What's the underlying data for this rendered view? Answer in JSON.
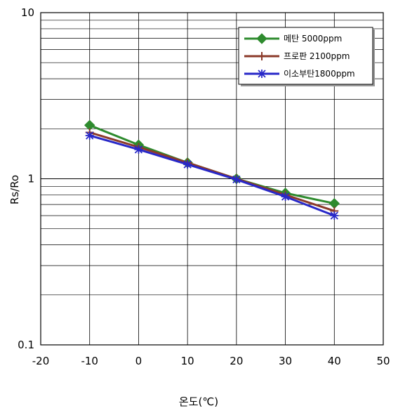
{
  "chart_data": {
    "type": "line",
    "xlabel": "온도(℃)",
    "ylabel": "Rs/Ro",
    "xlim": [
      -20,
      50
    ],
    "ylim": [
      0.1,
      10
    ],
    "yscale": "log",
    "grid": true,
    "legend_position": "top-right",
    "x_ticks": [
      "-20",
      "-10",
      "0",
      "10",
      "20",
      "30",
      "40",
      "50"
    ],
    "y_ticks": [
      "0.1",
      "1",
      "10"
    ],
    "series": [
      {
        "name": "메탄 5000ppm",
        "color": "#2e8b2e",
        "marker": "diamond",
        "x": [
          -10,
          0,
          10,
          20,
          30,
          40
        ],
        "y": [
          2.1,
          1.6,
          1.25,
          1.0,
          0.82,
          0.71
        ]
      },
      {
        "name": "프로판 2100ppm",
        "color": "#8b3a2a",
        "marker": "plus",
        "x": [
          -10,
          0,
          10,
          20,
          30,
          40
        ],
        "y": [
          1.9,
          1.55,
          1.25,
          1.0,
          0.8,
          0.64
        ]
      },
      {
        "name": "이소부탄1800ppm",
        "color": "#2828c8",
        "marker": "star",
        "x": [
          -10,
          0,
          10,
          20,
          30,
          40
        ],
        "y": [
          1.82,
          1.5,
          1.22,
          0.99,
          0.78,
          0.6
        ]
      }
    ]
  }
}
